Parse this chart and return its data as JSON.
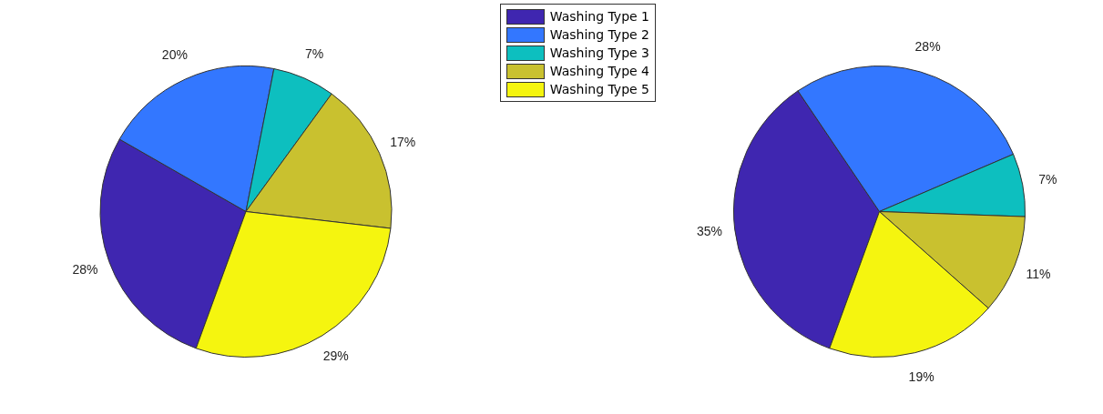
{
  "chart_data": [
    {
      "type": "pie",
      "categories": [
        "Washing Type 1",
        "Washing Type 2",
        "Washing Type 3",
        "Washing Type 4",
        "Washing Type 5"
      ],
      "values": [
        28,
        20,
        7,
        17,
        29
      ],
      "value_labels": [
        "28%",
        "20%",
        "7%",
        "17%",
        "29%"
      ],
      "colors": [
        "#3f26b0",
        "#3377ff",
        "#0dbfbf",
        "#c9c12f",
        "#f5f50f"
      ],
      "legend": "top right"
    },
    {
      "type": "pie",
      "categories": [
        null,
        null,
        null,
        null,
        null
      ],
      "values": [
        35,
        28,
        7,
        11,
        19
      ],
      "value_labels": [
        "35%",
        "28%",
        "7%",
        "11%",
        "19%"
      ],
      "colors": [
        "#3f26b0",
        "#3377ff",
        "#0dbfbf",
        "#c9c12f",
        "#f5f50f"
      ]
    }
  ]
}
